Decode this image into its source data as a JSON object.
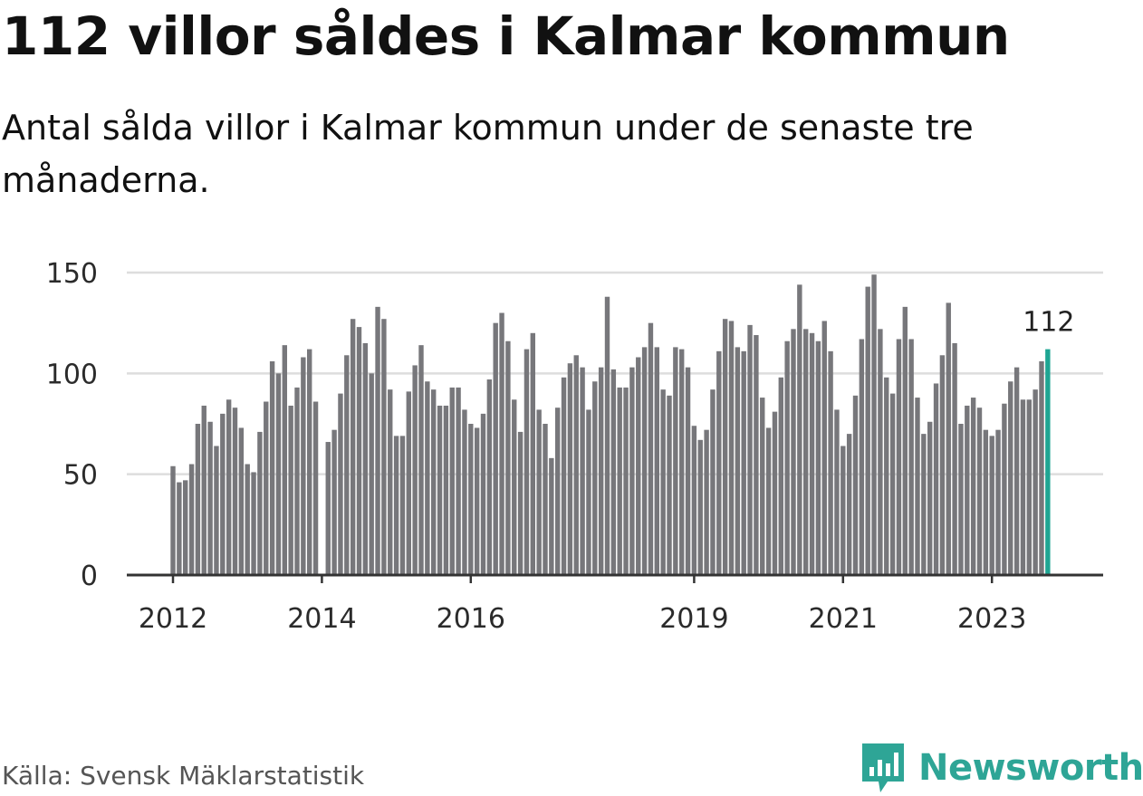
{
  "title": "112 villor såldes i Kalmar kommun",
  "subtitle": "Antal sålda villor i Kalmar kommun under de senaste tre månaderna.",
  "source": "Källa: Svensk Mäklarstatistik",
  "brand": {
    "name": "Newsworthy",
    "icon": "newsworthy-logo-icon"
  },
  "colors": {
    "bar": "#77777b",
    "highlight": "#1ea593",
    "grid": "#dddddd",
    "axis": "#333333",
    "brand": "#2ea596"
  },
  "chart_data": {
    "type": "bar",
    "title": "112 villor såldes i Kalmar kommun",
    "subtitle": "Antal sålda villor i Kalmar kommun under de senaste tre månaderna.",
    "xlabel": "",
    "ylabel": "",
    "ylim": [
      0,
      150
    ],
    "yticks": [
      0,
      50,
      100,
      150
    ],
    "grid": true,
    "start": "2012-01",
    "x_tick_labels": [
      {
        "label": "2012",
        "index": 0
      },
      {
        "label": "2014",
        "index": 24
      },
      {
        "label": "2016",
        "index": 48
      },
      {
        "label": "2019",
        "index": 84
      },
      {
        "label": "2021",
        "index": 108
      },
      {
        "label": "2023",
        "index": 132
      }
    ],
    "highlight_label": "112",
    "values": [
      54,
      46,
      47,
      55,
      75,
      84,
      76,
      64,
      80,
      87,
      83,
      73,
      55,
      51,
      71,
      86,
      106,
      100,
      114,
      84,
      93,
      108,
      112,
      86,
      null,
      66,
      72,
      90,
      109,
      127,
      123,
      115,
      100,
      133,
      127,
      92,
      69,
      69,
      91,
      104,
      114,
      96,
      92,
      84,
      84,
      93,
      93,
      82,
      75,
      73,
      80,
      97,
      125,
      130,
      116,
      87,
      71,
      112,
      120,
      82,
      75,
      58,
      83,
      98,
      105,
      109,
      103,
      82,
      96,
      103,
      138,
      102,
      93,
      93,
      103,
      108,
      113,
      125,
      113,
      92,
      89,
      113,
      112,
      103,
      74,
      67,
      72,
      92,
      111,
      127,
      126,
      113,
      111,
      124,
      119,
      88,
      73,
      81,
      98,
      116,
      122,
      144,
      122,
      120,
      116,
      126,
      111,
      82,
      64,
      70,
      89,
      117,
      143,
      149,
      122,
      98,
      90,
      117,
      133,
      117,
      88,
      70,
      76,
      95,
      109,
      135,
      115,
      75,
      84,
      88,
      83,
      72,
      69,
      72,
      85,
      96,
      103,
      87,
      87,
      92,
      106,
      112
    ]
  }
}
